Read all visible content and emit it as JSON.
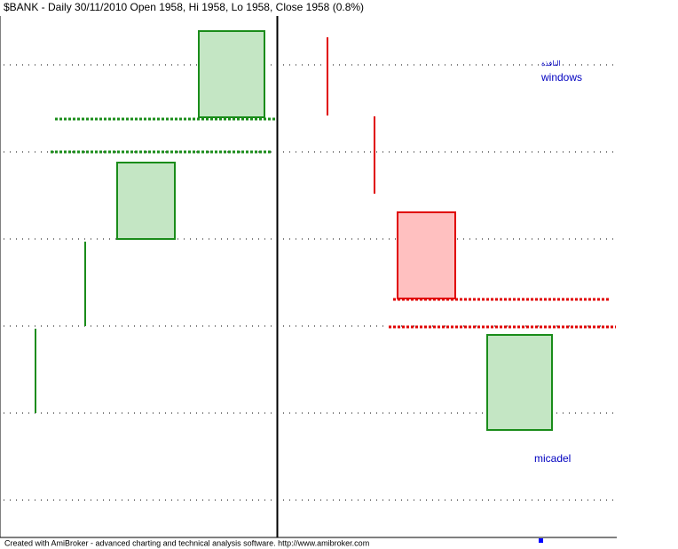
{
  "header": {
    "title": "$BANK - Daily 30/11/2010 Open 1958, Hi 1958, Lo 1958, Close 1958 (0.8%)"
  },
  "annotations": {
    "arabic": "النافذة",
    "windows": "windows",
    "micadel": "micadel"
  },
  "footer": {
    "text": "Created with AmiBroker - advanced charting and technical analysis software. http://www.amibroker.com"
  }
}
